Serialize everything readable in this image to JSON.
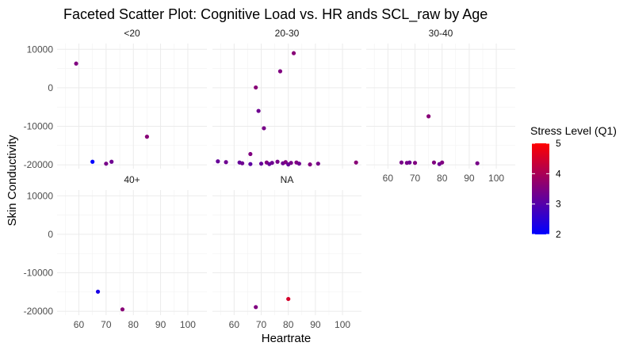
{
  "chart_data": {
    "type": "scatter",
    "title": "Faceted Scatter Plot: Cognitive Load vs. HR ands SCL_raw by Age",
    "xlabel": "Heartrate",
    "ylabel": "Skin Conductivity",
    "xlim": [
      52,
      107
    ],
    "ylim": [
      -21000,
      11500
    ],
    "x_ticks": [
      60,
      70,
      80,
      90,
      100
    ],
    "y_ticks": [
      10000,
      0,
      -10000,
      -20000
    ],
    "grid": true,
    "legend": {
      "title": "Stress Level (Q1)",
      "position": "right",
      "range": [
        2,
        5
      ],
      "ticks": [
        5,
        4,
        3,
        2
      ],
      "color_low": "#0000ff",
      "color_high": "#ff0000"
    },
    "facets": [
      {
        "label": "<20",
        "points": [
          {
            "x": 59,
            "y": 6300,
            "stress": 3.5
          },
          {
            "x": 65,
            "y": -19200,
            "stress": 2.0
          },
          {
            "x": 70,
            "y": -19700,
            "stress": 3.4
          },
          {
            "x": 72,
            "y": -19200,
            "stress": 3.3
          },
          {
            "x": 85,
            "y": -12700,
            "stress": 3.6
          }
        ]
      },
      {
        "label": "20-30",
        "points": [
          {
            "x": 54,
            "y": -19100,
            "stress": 3.2
          },
          {
            "x": 57,
            "y": -19300,
            "stress": 3.3
          },
          {
            "x": 62,
            "y": -19400,
            "stress": 3.2
          },
          {
            "x": 63,
            "y": -19600,
            "stress": 3.3
          },
          {
            "x": 66,
            "y": -17200,
            "stress": 3.5
          },
          {
            "x": 66,
            "y": -19800,
            "stress": 3.1
          },
          {
            "x": 68,
            "y": 100,
            "stress": 3.6
          },
          {
            "x": 69,
            "y": -6000,
            "stress": 3.3
          },
          {
            "x": 70,
            "y": -19700,
            "stress": 3.2
          },
          {
            "x": 71,
            "y": -10500,
            "stress": 3.4
          },
          {
            "x": 72,
            "y": -19400,
            "stress": 3.5
          },
          {
            "x": 73,
            "y": -19800,
            "stress": 3.2
          },
          {
            "x": 74,
            "y": -19500,
            "stress": 3.3
          },
          {
            "x": 76,
            "y": -19200,
            "stress": 3.4
          },
          {
            "x": 77,
            "y": 4300,
            "stress": 3.5
          },
          {
            "x": 78,
            "y": -19600,
            "stress": 3.3
          },
          {
            "x": 79,
            "y": -19300,
            "stress": 3.5
          },
          {
            "x": 80,
            "y": -19900,
            "stress": 3.2
          },
          {
            "x": 81,
            "y": -19500,
            "stress": 3.4
          },
          {
            "x": 82,
            "y": 9000,
            "stress": 3.6
          },
          {
            "x": 83,
            "y": -19400,
            "stress": 3.5
          },
          {
            "x": 84,
            "y": -19700,
            "stress": 3.3
          },
          {
            "x": 88,
            "y": -19900,
            "stress": 3.5
          },
          {
            "x": 91,
            "y": -19700,
            "stress": 3.4
          },
          {
            "x": 105,
            "y": -19400,
            "stress": 3.6
          }
        ]
      },
      {
        "label": "30-40",
        "points": [
          {
            "x": 65,
            "y": -19400,
            "stress": 3.4
          },
          {
            "x": 67,
            "y": -19500,
            "stress": 3.4
          },
          {
            "x": 68,
            "y": -19400,
            "stress": 3.3
          },
          {
            "x": 70,
            "y": -19500,
            "stress": 3.5
          },
          {
            "x": 75,
            "y": -7400,
            "stress": 3.6
          },
          {
            "x": 77,
            "y": -19400,
            "stress": 3.5
          },
          {
            "x": 79,
            "y": -19800,
            "stress": 3.3
          },
          {
            "x": 80,
            "y": -19400,
            "stress": 3.5
          },
          {
            "x": 93,
            "y": -19600,
            "stress": 3.4
          }
        ]
      },
      {
        "label": "40+",
        "points": [
          {
            "x": 67,
            "y": -14900,
            "stress": 2.3
          },
          {
            "x": 76,
            "y": -19500,
            "stress": 3.6
          }
        ]
      },
      {
        "label": "NA",
        "points": [
          {
            "x": 68,
            "y": -18900,
            "stress": 3.5
          },
          {
            "x": 80,
            "y": -16800,
            "stress": 4.5
          }
        ]
      }
    ]
  }
}
